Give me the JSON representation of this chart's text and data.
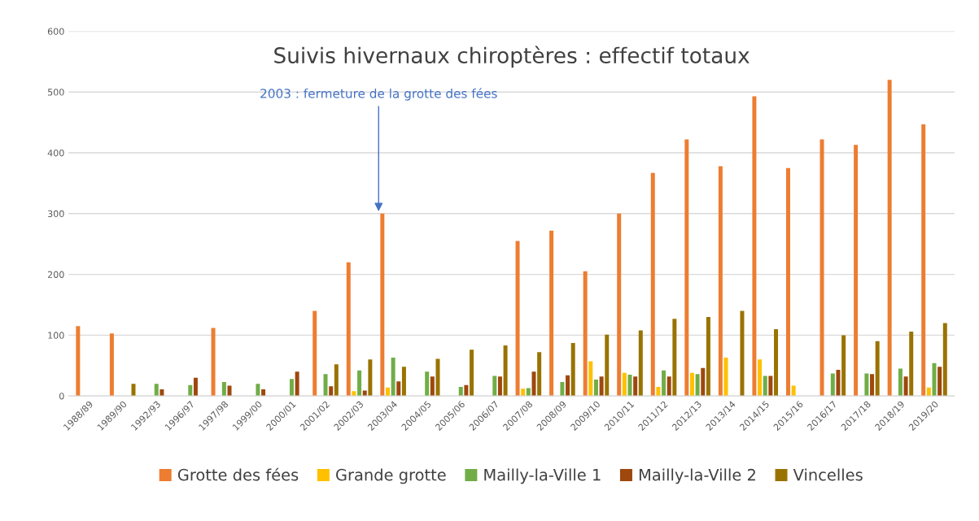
{
  "chart_data": {
    "type": "bar",
    "title": "Suivis hivernaux chiroptères : effectif totaux",
    "categories": [
      "1988/89",
      "1989/90",
      "1992/93",
      "1996/97",
      "1997/98",
      "1999/00",
      "2000/01",
      "2001/02",
      "2002/03",
      "2003/04",
      "2004/05",
      "2005/06",
      "2006/07",
      "2007/08",
      "2008/09",
      "2009/10",
      "2010/11",
      "2011/12",
      "2012/13",
      "2013/14",
      "2014/15",
      "2015/16",
      "2016/17",
      "2017/18",
      "2018/19",
      "2019/20"
    ],
    "series": [
      {
        "name": "Grotte des fées",
        "color": "#ed7d31",
        "values": [
          115,
          103,
          null,
          null,
          112,
          null,
          null,
          140,
          220,
          300,
          null,
          null,
          null,
          255,
          272,
          205,
          300,
          367,
          422,
          378,
          493,
          375,
          422,
          413,
          520,
          447
        ]
      },
      {
        "name": "Grande grotte",
        "color": "#ffc000",
        "values": [
          null,
          null,
          null,
          null,
          null,
          null,
          null,
          null,
          8,
          14,
          null,
          null,
          null,
          12,
          null,
          57,
          38,
          15,
          38,
          63,
          60,
          17,
          null,
          null,
          null,
          14
        ]
      },
      {
        "name": "Mailly-la-Ville 1",
        "color": "#70ad47",
        "values": [
          null,
          null,
          20,
          18,
          23,
          20,
          28,
          36,
          42,
          63,
          40,
          15,
          33,
          13,
          23,
          27,
          35,
          42,
          36,
          null,
          33,
          null,
          37,
          37,
          45,
          54
        ]
      },
      {
        "name": "Mailly-la-Ville 2",
        "color": "#9e480e",
        "values": [
          null,
          null,
          11,
          30,
          17,
          11,
          40,
          16,
          9,
          24,
          32,
          18,
          32,
          40,
          34,
          32,
          32,
          32,
          46,
          null,
          33,
          null,
          43,
          36,
          32,
          48
        ]
      },
      {
        "name": "Vincelles",
        "color": "#997300",
        "values": [
          null,
          20,
          null,
          null,
          null,
          null,
          null,
          52,
          60,
          48,
          61,
          76,
          83,
          72,
          87,
          101,
          108,
          127,
          130,
          140,
          110,
          null,
          100,
          90,
          106,
          120
        ]
      }
    ],
    "ylim": [
      0,
      600
    ],
    "yticks": [
      0,
      100,
      200,
      300,
      400,
      500,
      600
    ],
    "grid": "y",
    "legend": "bottom",
    "annotations": [
      {
        "text": "2003 : fermeture de la grotte des fées",
        "y": 300
      }
    ]
  }
}
